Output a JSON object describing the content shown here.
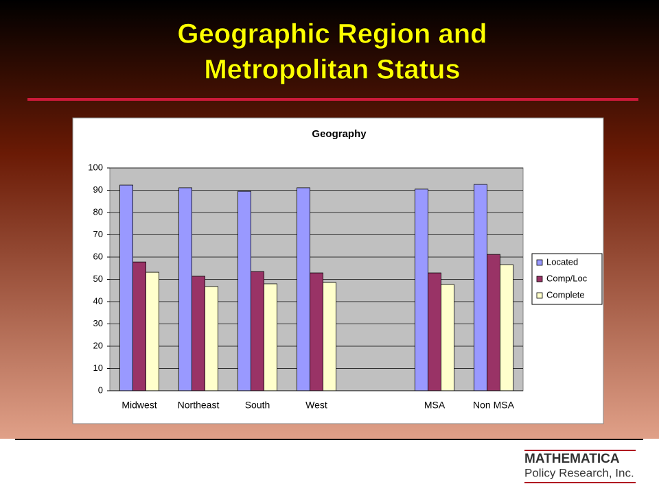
{
  "slide": {
    "title_lines": [
      "Geographic Region and",
      "Metropolitan Status"
    ],
    "logo": {
      "name": "MATHEMATICA",
      "tagline": "Policy Research, Inc."
    }
  },
  "chart_data": {
    "type": "bar",
    "title": "Geography",
    "categories": [
      "Midwest",
      "Northeast",
      "South",
      "West",
      null,
      "MSA",
      "Non MSA"
    ],
    "series": [
      {
        "name": "Located",
        "color": "#9999ff",
        "values": [
          92.3,
          91.1,
          89.5,
          91.1,
          null,
          90.5,
          92.6
        ]
      },
      {
        "name": "Comp/Loc",
        "color": "#993366",
        "values": [
          57.8,
          51.4,
          53.5,
          52.9,
          null,
          52.9,
          61.2
        ]
      },
      {
        "name": "Complete",
        "color": "#ffffcc",
        "values": [
          53.2,
          46.8,
          48.0,
          48.6,
          null,
          47.7,
          56.6
        ]
      }
    ],
    "ylim": [
      0,
      100
    ],
    "yticks": [
      0,
      10,
      20,
      30,
      40,
      50,
      60,
      70,
      80,
      90,
      100
    ],
    "grid": true,
    "legend": "right",
    "plot_background": "#c0c0c0"
  }
}
